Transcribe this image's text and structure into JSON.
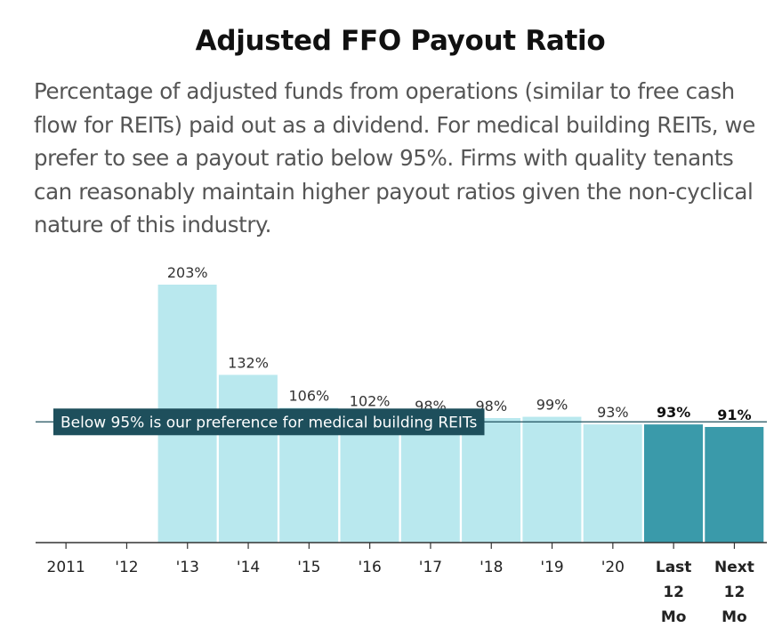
{
  "title": "Adjusted FFO Payout Ratio",
  "subtitle": "Percentage of adjusted funds from operations (similar to free cash flow for REITs) paid out as a dividend. For medical building REITs, we prefer to see a payout ratio below 95%. Firms with quality tenants can reasonably maintain higher payout ratios given the non-cyclical nature of this industry.",
  "colors": {
    "historical": "#b9e8ee",
    "current": "#3a9aaa",
    "reference_label_bg": "#1e4f5c"
  },
  "chart_data": {
    "type": "bar",
    "title": "Adjusted FFO Payout Ratio",
    "categories": [
      "2011",
      "'12",
      "'13",
      "'14",
      "'15",
      "'16",
      "'17",
      "'18",
      "'19",
      "'20",
      "Last 12 Mo",
      "Next 12 Mo"
    ],
    "values": [
      null,
      null,
      203,
      132,
      106,
      102,
      98,
      98,
      99,
      93,
      93,
      91
    ],
    "data_labels": [
      "",
      "",
      "203%",
      "132%",
      "106%",
      "102%",
      "98%",
      "98%",
      "99%",
      "93%",
      "93%",
      "91%"
    ],
    "highlighted": [
      false,
      false,
      false,
      false,
      false,
      false,
      false,
      false,
      false,
      false,
      true,
      true
    ],
    "reference_line": {
      "value": 95,
      "label": "Below 95% is our preference for medical building REITs"
    },
    "ylim": [
      0,
      203
    ],
    "xlabel": "",
    "ylabel": "",
    "grid": false
  }
}
